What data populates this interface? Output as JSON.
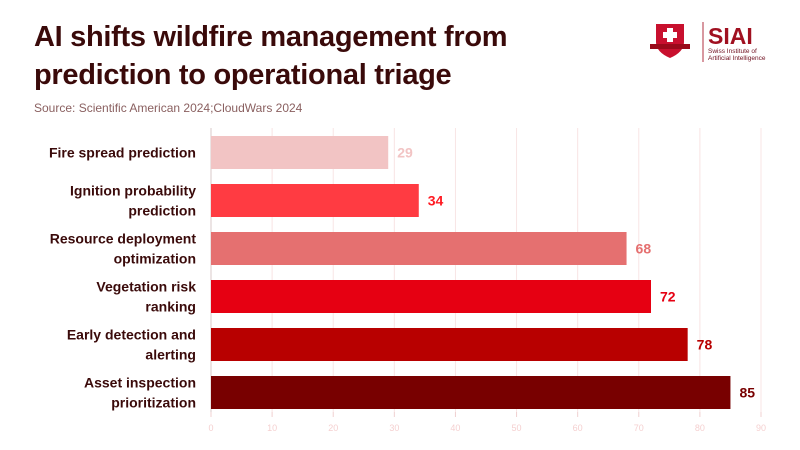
{
  "header": {
    "title_line1": "AI shifts wildfire management from",
    "title_line2": "prediction to operational triage",
    "source": "Source: Scientific American 2024;CloudWars 2024"
  },
  "logo": {
    "name": "SIAI",
    "subtitle_line1": "Swiss Institute of",
    "subtitle_line2": "Artificial Intelligence"
  },
  "chart_data": {
    "type": "bar",
    "orientation": "horizontal",
    "title": "AI shifts wildfire management from prediction to operational triage",
    "categories": [
      [
        "Fire spread prediction"
      ],
      [
        "Ignition probability",
        "prediction"
      ],
      [
        "Resource deployment",
        "optimization"
      ],
      [
        "Vegetation risk",
        "ranking"
      ],
      [
        "Early detection and",
        "alerting"
      ],
      [
        "Asset inspection",
        "prioritization"
      ]
    ],
    "values": [
      29,
      34,
      68,
      72,
      78,
      85
    ],
    "colors": [
      "#f2c4c4",
      "#ff3b42",
      "#e57070",
      "#e60012",
      "#b80000",
      "#780000"
    ],
    "label_colors": [
      "#f2c4c4",
      "#ff1a22",
      "#e57070",
      "#e60012",
      "#b80000",
      "#780000"
    ],
    "xlim": [
      0,
      90
    ],
    "xticks": [
      0,
      10,
      20,
      30,
      40,
      50,
      60,
      70,
      80,
      90
    ],
    "grid": true
  }
}
